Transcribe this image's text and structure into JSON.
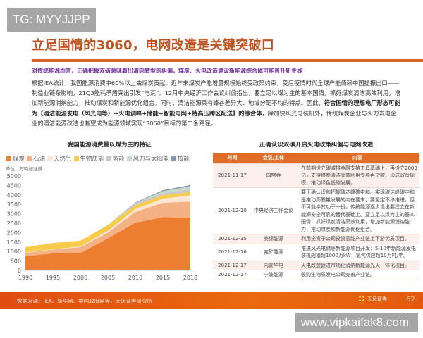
{
  "watermarks": {
    "top_left": "TG: MYYJJPP",
    "bottom_right": "www.vipkaifak8.com"
  },
  "title": "立足国情的3060，电网改造是关键突破口",
  "subtitle": "对传统能源而言，正确把握双碳意味着出清向转型的纠偏，煤炭、火电改造建设新能源综合体可能晋升新主线",
  "body": {
    "p1": "根据IEA统计，我国能源消费中60%以上由煤炭贡献。近年来煤炭产能增量规模始终受政策约束，受后疫情时代全球产能倚赖中国提振出口——制造业链条影响，21Q3能耗矛盾突出引发“电荒”。12月中央经济工作会议纠偏指出，要立足以煤为主的基本国情，抓好煤炭清洁高效利用，增加新能源消纳能力，推动煤炭和新能源优化组合。同时，清洁能源具有峰谷差异大、地域分配不均的特点。因此，",
    "bold": "符合国情的理想电厂形态可能为【清洁能源发电（风光电等）+火电调峰+储能+智能电网+特高压跨区配送】的综合体",
    "p2": "，除加快风光电装机外，传统煤炭企业与火力发电企业的清洁能源改造也有望成为能源领域实现“3060”目标的第二条路径。"
  },
  "chart_data": {
    "type": "area",
    "stacked": true,
    "title": "我国能源消费量以煤为主的特征",
    "ylabel": "单位：万吨标准煤",
    "categories": [
      "1990",
      "1995",
      "2000",
      "2005",
      "2010",
      "2015",
      "2018"
    ],
    "ylim": [
      0,
      5000
    ],
    "yticks": [
      "0",
      "500",
      "1000",
      "1500",
      "2000",
      "2500",
      "3000",
      "3500",
      "4000",
      "4500",
      "5000"
    ],
    "legend_position": "top",
    "grid": false,
    "series": [
      {
        "name": "煤炭",
        "color": "#ed7d31",
        "values": [
          750,
          900,
          920,
          1700,
          2530,
          2820,
          2800
        ]
      },
      {
        "name": "石油",
        "color": "#f4b183",
        "values": [
          180,
          200,
          310,
          300,
          570,
          760,
          850
        ]
      },
      {
        "name": "天然气",
        "color": "#fbe5d6",
        "values": [
          20,
          20,
          40,
          100,
          150,
          220,
          330
        ]
      },
      {
        "name": "生物质能",
        "color": "#f8cb4a",
        "values": [
          280,
          330,
          300,
          300,
          200,
          180,
          170
        ]
      },
      {
        "name": "氢能",
        "color": "#c9c9c9",
        "values": [
          0,
          0,
          0,
          0,
          100,
          120,
          150
        ]
      },
      {
        "name": "风力与太阳能",
        "color": "#c6dcc8",
        "values": [
          0,
          0,
          0,
          0,
          20,
          100,
          150
        ]
      },
      {
        "name": "核能",
        "color": "#8497b0",
        "values": [
          0,
          0,
          0,
          0,
          30,
          50,
          70
        ]
      }
    ]
  },
  "table": {
    "title": "正确认识双碳开启火电政策纠偏与电网改造",
    "headers": [
      "时间",
      "会议/主体",
      "内容"
    ],
    "rows": [
      [
        "2021-11-17",
        "国常会",
        "在前期设立碳减排金融支持工具基础上，再设立2000亿元支持煤炭清洁高效利用专项再贷款，形成政策规模，推动绿色低碳发展。"
      ],
      [
        "2021-12-10",
        "中央经济工作会议",
        "要正确认识和把握碳达峰碳中和。实现碳达峰碳中和是推动高质量发展的内在要求，要坚定不移推进，但不可能毕其功于一役。传统能源逐步退出要建立在新能源安全可靠的替代基础上。要立足以煤为主的基本国情，抓好煤炭清洁高效利用，增加新能源消纳能力，推动煤炭和新能源优化组合。"
      ],
      [
        "2021-12-15",
        "美锦能源",
        "利用全资子公司投资氢能产业链上下游优质项目。"
      ],
      [
        "2021-12-16",
        "兖矿能源",
        "推进风光电储等新能源项目开发；5-10年新能源发电装机规模超1000万kW，氢气供应超10万吨/年。"
      ],
      [
        "2021-12-17",
        "内蒙华电",
        "火电改造促进市场化消纳新能源光火一体化项目。"
      ],
      [
        "2021-12-17",
        "宁波能源",
        "收购生物质发电公司完善产业链。"
      ]
    ]
  },
  "footer": {
    "source": "数据来源：IEA、新华网、中国政府网等，天风证券研究所",
    "logo": "天风证券",
    "page": "62"
  }
}
